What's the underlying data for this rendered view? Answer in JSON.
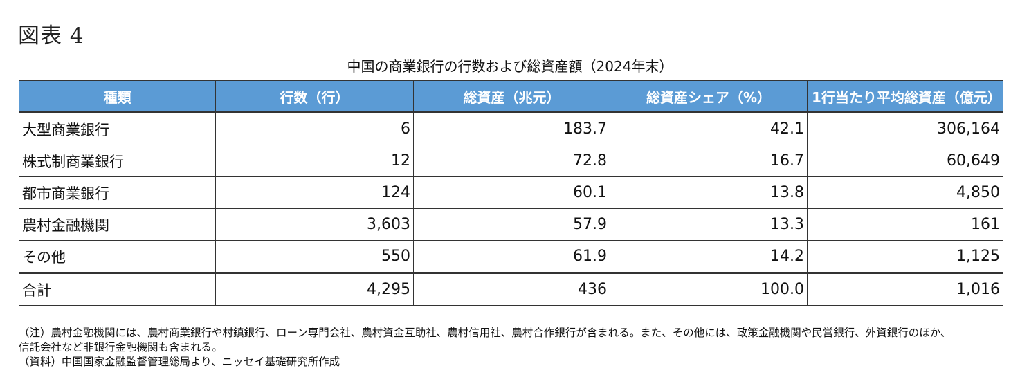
{
  "figure_label": "図表 4",
  "table_title": "中国の商業銀行の行数および総資産額（2024年末）",
  "headers": [
    "種類",
    "行数（行）",
    "総資産（兆元）",
    "総資産シェア（%）",
    "1行当たり平均総資産（億元）"
  ],
  "rows": [
    {
      "name": "大型商業銀行",
      "banks": "6",
      "assets": "183.7",
      "share": "42.1",
      "avg": "306,164"
    },
    {
      "name": "株式制商業銀行",
      "banks": "12",
      "assets": "72.8",
      "share": "16.7",
      "avg": "60,649"
    },
    {
      "name": "都市商業銀行",
      "banks": "124",
      "assets": "60.1",
      "share": "13.8",
      "avg": "4,850"
    },
    {
      "name": "農村金融機関",
      "banks": "3,603",
      "assets": "57.9",
      "share": "13.3",
      "avg": "161"
    },
    {
      "name": "その他",
      "banks": "550",
      "assets": "61.9",
      "share": "14.2",
      "avg": "1,125"
    },
    {
      "name": "合計",
      "banks": "4,295",
      "assets": "436",
      "share": "100.0",
      "avg": "1,016"
    }
  ],
  "notes": [
    "（注）農村金融機関には、農村商業銀行や村鎮銀行、ローン専門会社、農村資金互助社、農村信用社、農村合作銀行が含まれる。また、その他には、政策金融機関や民営銀行、外資銀行のほか、",
    "信託会社など非銀行金融機関も含まれる。",
    "（資料）中国国家金融監督管理総局より、ニッセイ基礎研究所作成"
  ],
  "colors": {
    "header_bg": "#5b9bd5",
    "header_text": "#ffffff",
    "border": "#333333"
  }
}
